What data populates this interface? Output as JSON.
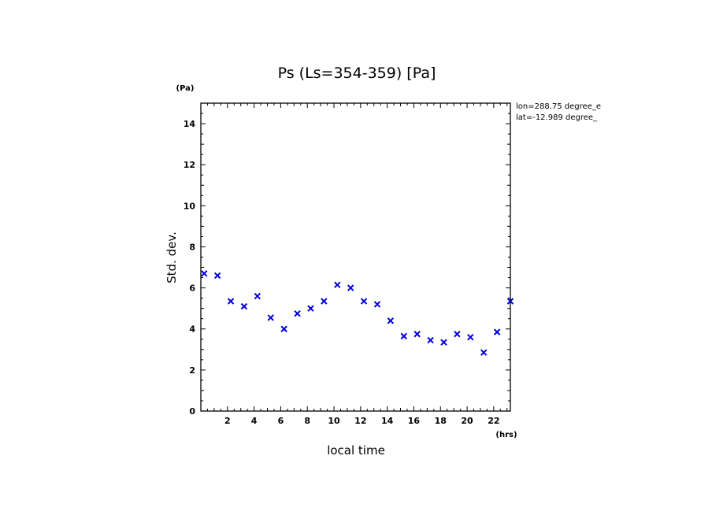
{
  "chart_data": {
    "type": "scatter",
    "title": "Ps (Ls=354-359) [Pa]",
    "xlabel": "local time",
    "ylabel": "Std. dev.",
    "x_unit": "(hrs)",
    "y_unit": "(Pa)",
    "xlim": [
      0,
      23.25
    ],
    "ylim": [
      0,
      15
    ],
    "x_ticks": [
      2,
      4,
      6,
      8,
      10,
      12,
      14,
      16,
      18,
      20,
      22
    ],
    "y_ticks": [
      0,
      2,
      4,
      6,
      8,
      10,
      12,
      14
    ],
    "grid": false,
    "marker_color": "#0000dd",
    "annotations": [
      "lon=288.75 degree_e",
      "lat=-12.989 degree_"
    ],
    "series": [
      {
        "x": [
          0.25,
          1.25,
          2.25,
          3.25,
          4.25,
          5.25,
          6.25,
          7.25,
          8.25,
          9.25,
          10.25,
          11.25,
          12.25,
          13.25,
          14.25,
          15.25,
          16.25,
          17.25,
          18.25,
          19.25,
          20.25,
          21.25,
          22.25,
          23.25
        ],
        "y": [
          6.7,
          6.6,
          5.35,
          5.1,
          5.6,
          4.55,
          4.0,
          4.75,
          5.0,
          5.35,
          6.15,
          6.0,
          5.35,
          5.2,
          4.4,
          3.65,
          3.75,
          3.45,
          3.35,
          3.75,
          3.6,
          2.85,
          3.85,
          5.35
        ]
      }
    ]
  }
}
